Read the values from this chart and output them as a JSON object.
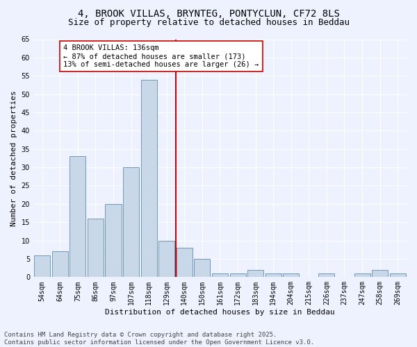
{
  "title": "4, BROOK VILLAS, BRYNTEG, PONTYCLUN, CF72 8LS",
  "subtitle": "Size of property relative to detached houses in Beddau",
  "xlabel": "Distribution of detached houses by size in Beddau",
  "ylabel": "Number of detached properties",
  "categories": [
    "54sqm",
    "64sqm",
    "75sqm",
    "86sqm",
    "97sqm",
    "107sqm",
    "118sqm",
    "129sqm",
    "140sqm",
    "150sqm",
    "161sqm",
    "172sqm",
    "183sqm",
    "194sqm",
    "204sqm",
    "215sqm",
    "226sqm",
    "237sqm",
    "247sqm",
    "258sqm",
    "269sqm"
  ],
  "values": [
    6,
    7,
    33,
    16,
    20,
    30,
    54,
    10,
    8,
    5,
    1,
    1,
    2,
    1,
    1,
    0,
    1,
    0,
    1,
    2,
    1
  ],
  "bar_color": "#c8d8e8",
  "bar_edge_color": "#7099b8",
  "vline_x_index": 7.5,
  "annotation_text": "4 BROOK VILLAS: 136sqm\n← 87% of detached houses are smaller (173)\n13% of semi-detached houses are larger (26) →",
  "annotation_box_color": "#ffffff",
  "annotation_box_edge_color": "#cc0000",
  "vline_color": "#cc0000",
  "ylim": [
    0,
    65
  ],
  "yticks": [
    0,
    5,
    10,
    15,
    20,
    25,
    30,
    35,
    40,
    45,
    50,
    55,
    60,
    65
  ],
  "bg_color": "#eef2ff",
  "footer_text": "Contains HM Land Registry data © Crown copyright and database right 2025.\nContains public sector information licensed under the Open Government Licence v3.0.",
  "title_fontsize": 10,
  "subtitle_fontsize": 9,
  "axis_label_fontsize": 8,
  "tick_fontsize": 7,
  "annotation_fontsize": 7.5,
  "footer_fontsize": 6.5
}
